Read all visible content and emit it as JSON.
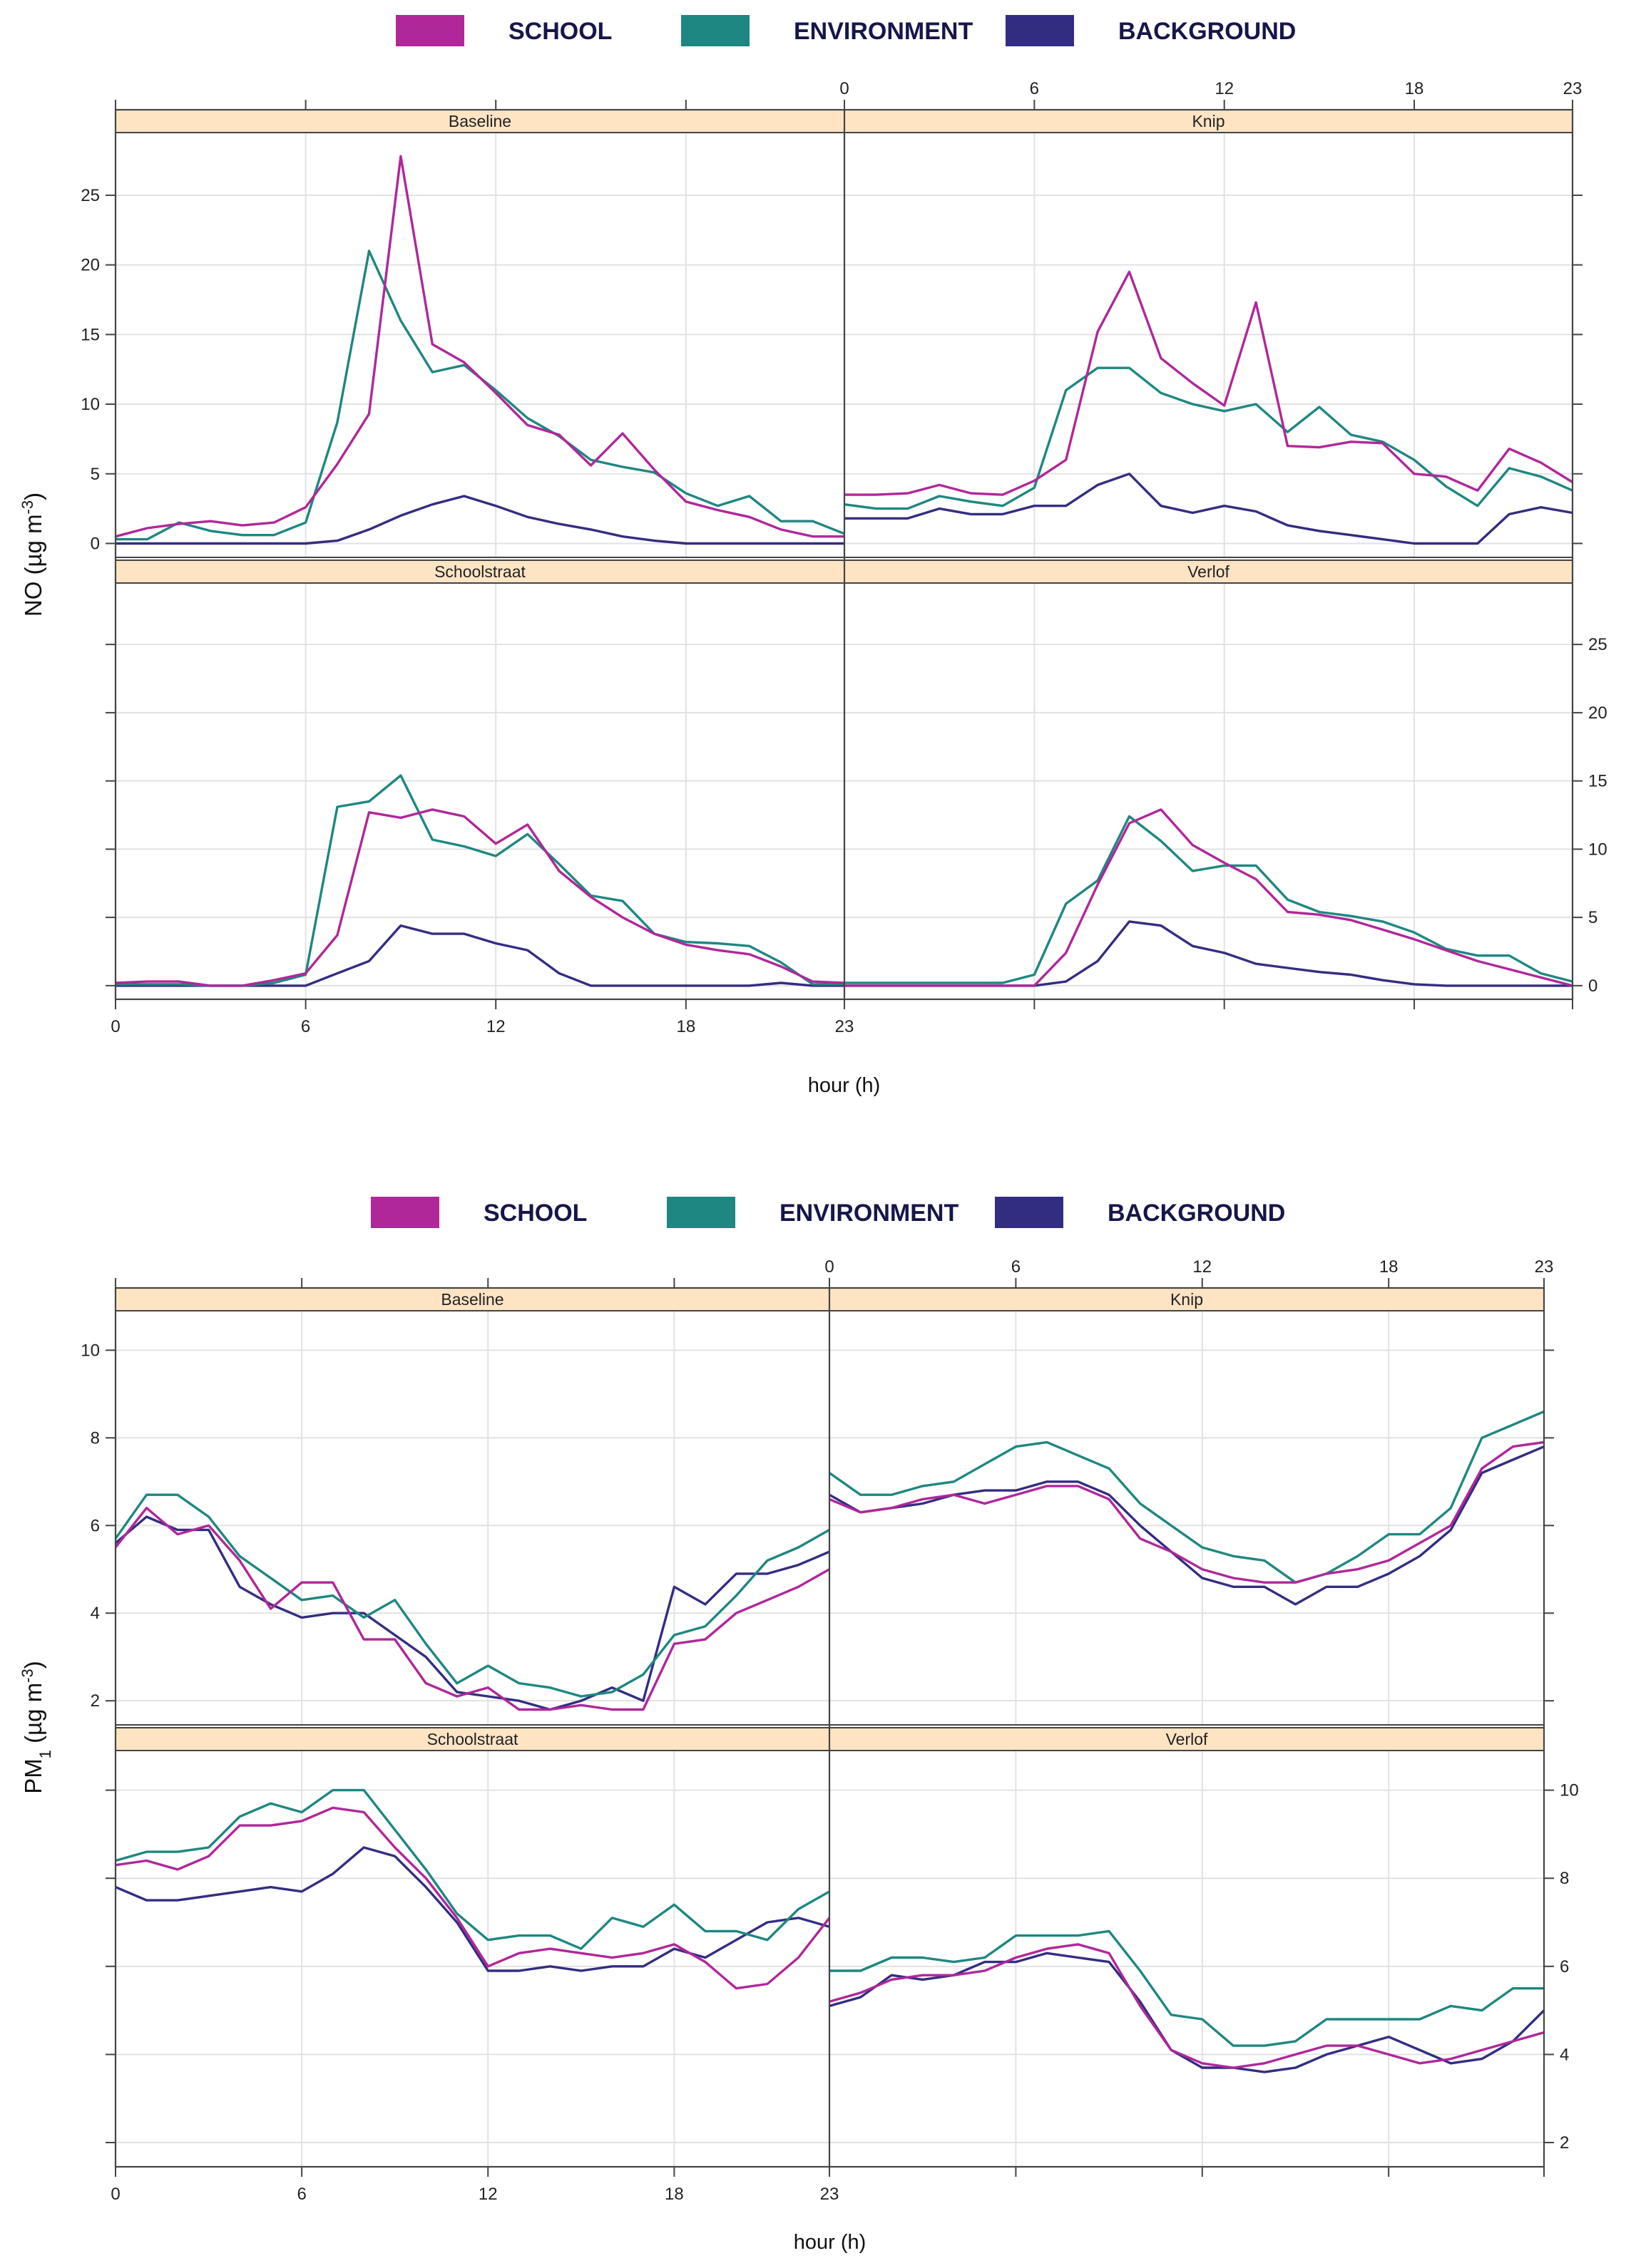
{
  "colors": {
    "school": "#B0279A",
    "environment": "#1E8781",
    "background": "#332D82",
    "strip": "#FFE4C4",
    "grid": "#E2E2E2",
    "frame": "#444444"
  },
  "chart_data": [
    {
      "type": "line",
      "id": "no",
      "legend": [
        {
          "key": "school",
          "label": "SCHOOL"
        },
        {
          "key": "environment",
          "label": "ENVIRONMENT"
        },
        {
          "key": "background",
          "label": "BACKGROUND"
        }
      ],
      "ylabel": "NO (µg m",
      "ylabel_sup": "-3",
      "ylabel_tail": ")",
      "xlabel": "hour (h)",
      "xlim": [
        0,
        23
      ],
      "ylim": [
        -1,
        29.5
      ],
      "xticks": [
        0,
        6,
        12,
        18,
        23
      ],
      "yticks": [
        0,
        5,
        10,
        15,
        20,
        25
      ],
      "panels": [
        {
          "name": "Baseline",
          "position": "top-left",
          "series": {
            "school": [
              0.5,
              1.1,
              1.4,
              1.6,
              1.3,
              1.5,
              2.6,
              5.7,
              9.3,
              27.8,
              14.3,
              13.0,
              10.8,
              8.5,
              7.8,
              5.6,
              7.9,
              5.3,
              3.0,
              2.4,
              1.9,
              1.0,
              0.5,
              0.5
            ],
            "environment": [
              0.3,
              0.3,
              1.5,
              0.9,
              0.6,
              0.6,
              1.5,
              8.7,
              21.0,
              16.0,
              12.3,
              12.8,
              11.0,
              9.0,
              7.7,
              6.0,
              5.5,
              5.1,
              3.6,
              2.7,
              3.4,
              1.6,
              1.6,
              0.7
            ],
            "background": [
              0,
              0,
              0,
              0,
              0,
              0,
              0,
              0.2,
              1.0,
              2.0,
              2.8,
              3.4,
              2.7,
              1.9,
              1.4,
              1.0,
              0.5,
              0.2,
              0,
              0,
              0,
              0,
              0,
              0
            ]
          }
        },
        {
          "name": "Knip",
          "position": "top-right",
          "series": {
            "school": [
              3.5,
              3.5,
              3.6,
              4.2,
              3.6,
              3.5,
              4.5,
              6.0,
              15.2,
              19.5,
              13.3,
              11.5,
              9.9,
              17.3,
              7.0,
              6.9,
              7.3,
              7.2,
              5.0,
              4.8,
              3.8,
              6.8,
              5.8,
              4.4
            ],
            "environment": [
              2.8,
              2.5,
              2.5,
              3.4,
              3.0,
              2.7,
              4.0,
              11.0,
              12.6,
              12.6,
              10.8,
              10.0,
              9.5,
              10.0,
              8.0,
              9.8,
              7.8,
              7.3,
              6.0,
              4.1,
              2.7,
              5.4,
              4.8,
              3.8
            ],
            "background": [
              1.8,
              1.8,
              1.8,
              2.5,
              2.1,
              2.1,
              2.7,
              2.7,
              4.2,
              5.0,
              2.7,
              2.2,
              2.7,
              2.3,
              1.3,
              0.9,
              0.6,
              0.3,
              0,
              0,
              0,
              2.1,
              2.6,
              2.2
            ]
          }
        },
        {
          "name": "Schoolstraat",
          "position": "bottom-left",
          "series": {
            "school": [
              0.2,
              0.3,
              0.3,
              0,
              0,
              0.4,
              0.9,
              3.7,
              12.7,
              12.3,
              12.9,
              12.4,
              10.4,
              11.8,
              8.4,
              6.5,
              5.0,
              3.8,
              3.0,
              2.6,
              2.3,
              1.4,
              0.3,
              0.2
            ],
            "environment": [
              0.1,
              0.1,
              0.1,
              0,
              0,
              0.2,
              0.8,
              13.1,
              13.5,
              15.4,
              10.7,
              10.2,
              9.5,
              11.1,
              8.9,
              6.6,
              6.2,
              3.8,
              3.2,
              3.1,
              2.9,
              1.7,
              0.1,
              0.1
            ],
            "background": [
              0,
              0,
              0,
              0,
              0,
              0,
              0,
              0.9,
              1.8,
              4.4,
              3.8,
              3.8,
              3.1,
              2.6,
              0.9,
              0,
              0,
              0,
              0,
              0,
              0,
              0.2,
              0,
              0
            ]
          }
        },
        {
          "name": "Verlof",
          "position": "bottom-right",
          "series": {
            "school": [
              0,
              0,
              0,
              0,
              0,
              0,
              0,
              2.4,
              7.4,
              11.9,
              12.9,
              10.3,
              9.0,
              7.8,
              5.4,
              5.2,
              4.8,
              4.1,
              3.4,
              2.6,
              1.8,
              1.2,
              0.6,
              0
            ],
            "environment": [
              0.2,
              0.2,
              0.2,
              0.2,
              0.2,
              0.2,
              0.8,
              6.0,
              7.7,
              12.4,
              10.6,
              8.4,
              8.8,
              8.8,
              6.3,
              5.4,
              5.1,
              4.7,
              3.9,
              2.7,
              2.2,
              2.2,
              0.9,
              0.3
            ],
            "background": [
              0,
              0,
              0,
              0,
              0,
              0,
              0,
              0.3,
              1.8,
              4.7,
              4.4,
              2.9,
              2.4,
              1.6,
              1.3,
              1.0,
              0.8,
              0.4,
              0.1,
              0,
              0,
              0,
              0,
              0
            ]
          }
        }
      ]
    },
    {
      "type": "line",
      "id": "pm1",
      "legend": [
        {
          "key": "school",
          "label": "SCHOOL"
        },
        {
          "key": "environment",
          "label": "ENVIRONMENT"
        },
        {
          "key": "background",
          "label": "BACKGROUND"
        }
      ],
      "ylabel": "PM",
      "ylabel_sub": "1",
      "ylabel_tail": " (µg m",
      "ylabel_sup": "-3",
      "ylabel_tail2": ")",
      "xlabel": "hour (h)",
      "xlim": [
        0,
        23
      ],
      "ylim": [
        1.45,
        10.9
      ],
      "xticks": [
        0,
        6,
        12,
        18,
        23
      ],
      "yticks": [
        2,
        4,
        6,
        8,
        10
      ],
      "panels": [
        {
          "name": "Baseline",
          "position": "top-left",
          "series": {
            "school": [
              5.5,
              6.4,
              5.8,
              6.0,
              5.2,
              4.1,
              4.7,
              4.7,
              3.4,
              3.4,
              2.4,
              2.1,
              2.3,
              1.8,
              1.8,
              1.9,
              1.8,
              1.8,
              3.3,
              3.4,
              4.0,
              4.3,
              4.6,
              5.0
            ],
            "environment": [
              5.7,
              6.7,
              6.7,
              6.2,
              5.3,
              4.8,
              4.3,
              4.4,
              3.9,
              4.3,
              3.3,
              2.4,
              2.8,
              2.4,
              2.3,
              2.1,
              2.2,
              2.6,
              3.5,
              3.7,
              4.4,
              5.2,
              5.5,
              5.9
            ],
            "background": [
              5.6,
              6.2,
              5.9,
              5.9,
              4.6,
              4.2,
              3.9,
              4.0,
              4.0,
              3.5,
              3.0,
              2.2,
              2.1,
              2.0,
              1.8,
              2.0,
              2.3,
              2.0,
              4.6,
              4.2,
              4.9,
              4.9,
              5.1,
              5.4
            ]
          }
        },
        {
          "name": "Knip",
          "position": "top-right",
          "series": {
            "school": [
              6.6,
              6.3,
              6.4,
              6.6,
              6.7,
              6.5,
              6.7,
              6.9,
              6.9,
              6.6,
              5.7,
              5.4,
              5.0,
              4.8,
              4.7,
              4.7,
              4.9,
              5.0,
              5.2,
              5.6,
              6.0,
              7.3,
              7.8,
              7.9
            ],
            "environment": [
              7.2,
              6.7,
              6.7,
              6.9,
              7.0,
              7.4,
              7.8,
              7.9,
              7.6,
              7.3,
              6.5,
              6.0,
              5.5,
              5.3,
              5.2,
              4.7,
              4.9,
              5.3,
              5.8,
              5.8,
              6.4,
              8.0,
              8.3,
              8.6
            ],
            "background": [
              6.7,
              6.3,
              6.4,
              6.5,
              6.7,
              6.8,
              6.8,
              7.0,
              7.0,
              6.7,
              6.0,
              5.4,
              4.8,
              4.6,
              4.6,
              4.2,
              4.6,
              4.6,
              4.9,
              5.3,
              5.9,
              7.2,
              7.5,
              7.8
            ]
          }
        },
        {
          "name": "Schoolstraat",
          "position": "bottom-left",
          "series": {
            "school": [
              8.3,
              8.4,
              8.2,
              8.5,
              9.2,
              9.2,
              9.3,
              9.6,
              9.5,
              8.7,
              8.0,
              7.1,
              6.0,
              6.3,
              6.4,
              6.3,
              6.2,
              6.3,
              6.5,
              6.1,
              5.5,
              5.6,
              6.2,
              7.1
            ],
            "environment": [
              8.4,
              8.6,
              8.6,
              8.7,
              9.4,
              9.7,
              9.5,
              10.0,
              10.0,
              9.1,
              8.2,
              7.2,
              6.6,
              6.7,
              6.7,
              6.4,
              7.1,
              6.9,
              7.4,
              6.8,
              6.8,
              6.6,
              7.3,
              7.7
            ],
            "background": [
              7.8,
              7.5,
              7.5,
              7.6,
              7.7,
              7.8,
              7.7,
              8.1,
              8.7,
              8.5,
              7.8,
              7.0,
              5.9,
              5.9,
              6.0,
              5.9,
              6.0,
              6.0,
              6.4,
              6.2,
              6.6,
              7.0,
              7.1,
              6.9
            ]
          }
        },
        {
          "name": "Verlof",
          "position": "bottom-right",
          "series": {
            "school": [
              5.2,
              5.4,
              5.7,
              5.8,
              5.8,
              5.9,
              6.2,
              6.4,
              6.5,
              6.3,
              5.1,
              4.1,
              3.8,
              3.7,
              3.8,
              4.0,
              4.2,
              4.2,
              4.0,
              3.8,
              3.9,
              4.1,
              4.3,
              4.5
            ],
            "environment": [
              5.9,
              5.9,
              6.2,
              6.2,
              6.1,
              6.2,
              6.7,
              6.7,
              6.7,
              6.8,
              5.9,
              4.9,
              4.8,
              4.2,
              4.2,
              4.3,
              4.8,
              4.8,
              4.8,
              4.8,
              5.1,
              5.0,
              5.5,
              5.5
            ],
            "background": [
              5.1,
              5.3,
              5.8,
              5.7,
              5.8,
              6.1,
              6.1,
              6.3,
              6.2,
              6.1,
              5.2,
              4.1,
              3.7,
              3.7,
              3.6,
              3.7,
              4.0,
              4.2,
              4.4,
              4.1,
              3.8,
              3.9,
              4.3,
              5.0
            ]
          }
        }
      ]
    }
  ]
}
